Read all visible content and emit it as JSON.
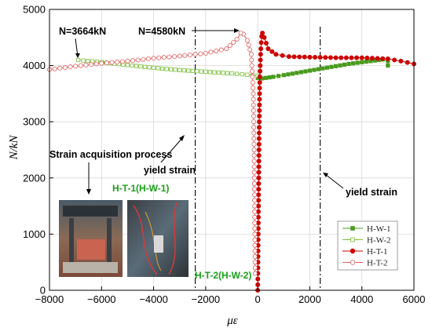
{
  "chart_data": {
    "type": "line",
    "xlabel": "με",
    "ylabel": "N/kN",
    "xlim": [
      -8000,
      6000
    ],
    "ylim": [
      0,
      5000
    ],
    "x_ticks": [
      "−8000",
      "−6000",
      "−4000",
      "−2000",
      "0",
      "2000",
      "4000",
      "6000"
    ],
    "y_ticks": [
      "0",
      "1000",
      "2000",
      "3000",
      "4000",
      "5000"
    ],
    "grid": true,
    "legend_placement": "bottom-right",
    "yield_lines_x": [
      -2400,
      2400
    ],
    "series": [
      {
        "name": "H-W-1",
        "color": "#4a9a1e",
        "marker": "square",
        "filled": true,
        "points": [
          [
            0,
            3780
          ],
          [
            150,
            3770
          ],
          [
            300,
            3780
          ],
          [
            600,
            3800
          ],
          [
            1000,
            3830
          ],
          [
            1500,
            3870
          ],
          [
            2000,
            3910
          ],
          [
            2500,
            3950
          ],
          [
            3000,
            3990
          ],
          [
            3500,
            4030
          ],
          [
            4000,
            4060
          ],
          [
            4500,
            4090
          ],
          [
            4800,
            4110
          ],
          [
            5000,
            4080
          ],
          [
            5000,
            4000
          ]
        ]
      },
      {
        "name": "H-W-2",
        "color": "#7bbf3a",
        "marker": "square",
        "filled": false,
        "points": [
          [
            0,
            3820
          ],
          [
            -200,
            3830
          ],
          [
            -1000,
            3860
          ],
          [
            -2000,
            3890
          ],
          [
            -3000,
            3920
          ],
          [
            -4000,
            3960
          ],
          [
            -5000,
            4010
          ],
          [
            -6000,
            4060
          ],
          [
            -6700,
            4090
          ],
          [
            -6900,
            4100
          ]
        ]
      },
      {
        "name": "H-T-1",
        "color": "#cc0000",
        "marker": "circle",
        "filled": true,
        "points": [
          [
            0,
            0
          ],
          [
            10,
            500
          ],
          [
            20,
            1000
          ],
          [
            40,
            2000
          ],
          [
            60,
            3000
          ],
          [
            80,
            3800
          ],
          [
            120,
            4300
          ],
          [
            150,
            4520
          ],
          [
            180,
            4580
          ],
          [
            250,
            4500
          ],
          [
            400,
            4300
          ],
          [
            700,
            4200
          ],
          [
            1200,
            4160
          ],
          [
            2000,
            4150
          ],
          [
            3000,
            4140
          ],
          [
            4000,
            4140
          ],
          [
            5000,
            4120
          ],
          [
            5500,
            4080
          ],
          [
            6000,
            4030
          ]
        ]
      },
      {
        "name": "H-T-2",
        "color": "#e06060",
        "marker": "circle",
        "filled": false,
        "points": [
          [
            -100,
            300
          ],
          [
            -110,
            800
          ],
          [
            -120,
            1500
          ],
          [
            -140,
            2500
          ],
          [
            -170,
            3500
          ],
          [
            -250,
            4200
          ],
          [
            -400,
            4450
          ],
          [
            -550,
            4560
          ],
          [
            -650,
            4580
          ],
          [
            -800,
            4470
          ],
          [
            -1200,
            4300
          ],
          [
            -2000,
            4220
          ],
          [
            -3000,
            4170
          ],
          [
            -4000,
            4130
          ],
          [
            -5000,
            4080
          ],
          [
            -6000,
            4040
          ],
          [
            -7000,
            3990
          ],
          [
            -8000,
            3930
          ]
        ]
      }
    ]
  },
  "annotations": {
    "n1": "N=3664kN",
    "n2": "N=4580kN",
    "strain_process": "Strain acquisition process",
    "yield_left": "yield strain",
    "yield_right": "yield strain",
    "ht1": "H-T-1(H-W-1)",
    "ht2": "H-T-2(H-W-2)"
  }
}
